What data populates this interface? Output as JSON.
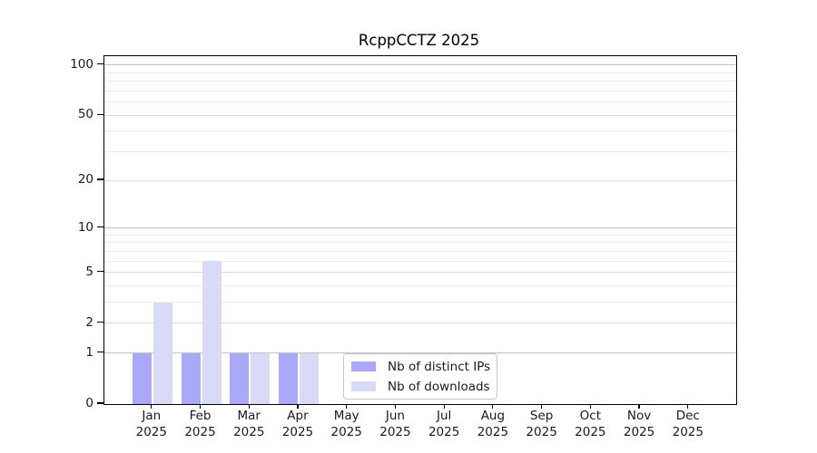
{
  "figure": {
    "background": "#ffffff",
    "text_color": "#1a1a1a",
    "axis_color": "#000000"
  },
  "chart_data": {
    "type": "bar",
    "title": "RcppCCTZ 2025",
    "xlabel": "",
    "ylabel": "",
    "x": {
      "months": [
        "Jan",
        "Feb",
        "Mar",
        "Apr",
        "May",
        "Jun",
        "Jul",
        "Aug",
        "Sep",
        "Oct",
        "Nov",
        "Dec"
      ],
      "year": "2025"
    },
    "series": [
      {
        "name": "Nb of distinct IPs",
        "color": "#a9a9f8",
        "values": [
          1,
          1,
          1,
          1,
          0,
          0,
          0,
          0,
          0,
          0,
          0,
          0
        ]
      },
      {
        "name": "Nb of downloads",
        "color": "#d9d9f8",
        "values": [
          3,
          6,
          1,
          1,
          0,
          0,
          0,
          0,
          0,
          0,
          0,
          0
        ]
      }
    ],
    "yscale": "log1p",
    "ylim": [
      0,
      113
    ],
    "y_ticks": [
      0,
      1,
      2,
      5,
      10,
      20,
      50,
      100
    ],
    "grid": {
      "on": true,
      "major": [
        1,
        10,
        100
      ],
      "labeled": [
        2,
        5,
        20,
        50
      ],
      "minor": [
        3,
        4,
        6,
        7,
        8,
        9,
        30,
        40,
        60,
        70,
        80,
        90
      ],
      "major_color": "#c2c2c2",
      "labeled_color": "#dbdbdb",
      "minor_color": "#ececec"
    },
    "legend": {
      "position": "bottom-center",
      "border_color": "#c7c7c7"
    }
  }
}
